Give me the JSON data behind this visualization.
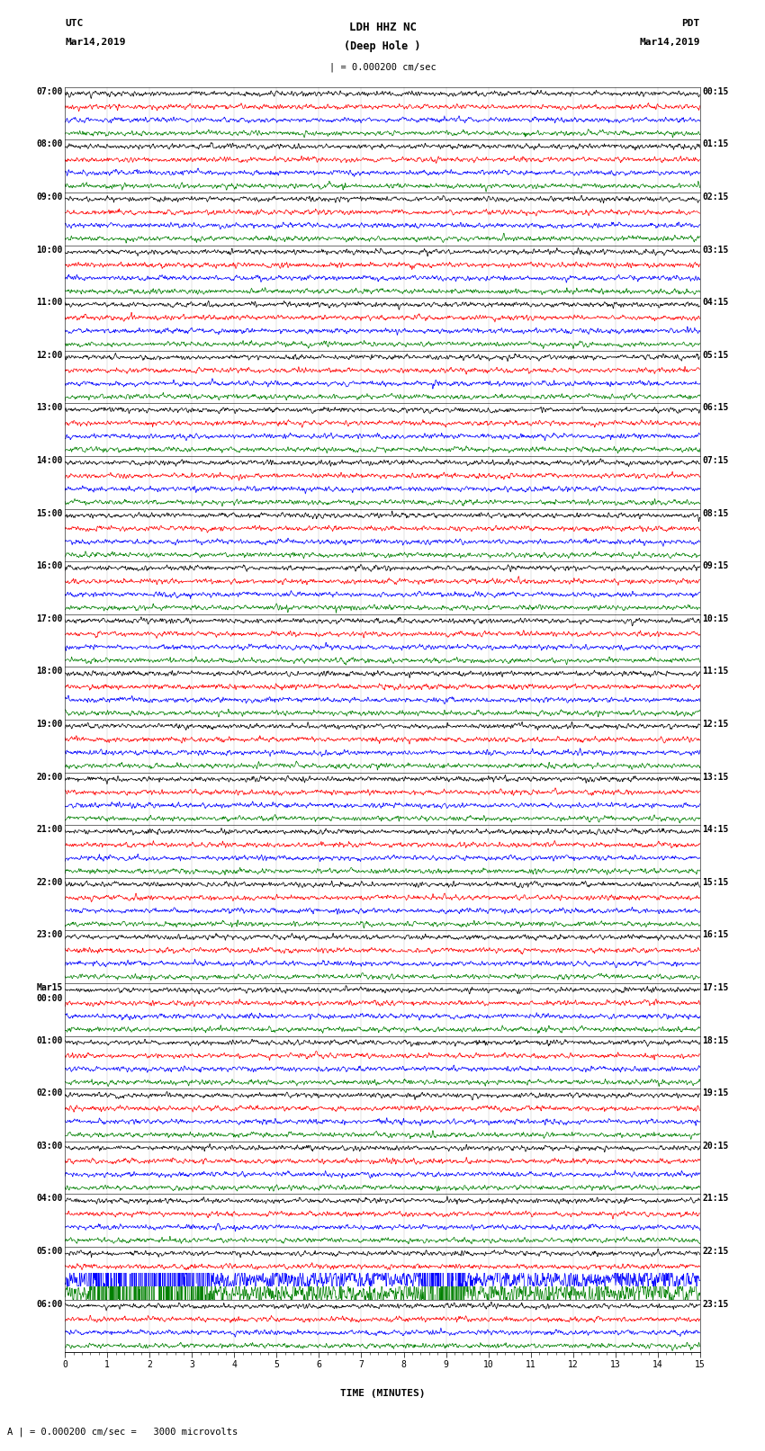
{
  "title_line1": "LDH HHZ NC",
  "title_line2": "(Deep Hole )",
  "title_scale": "| = 0.000200 cm/sec",
  "label_left_top": "UTC",
  "label_left_date": "Mar14,2019",
  "label_right_top": "PDT",
  "label_right_date": "Mar14,2019",
  "xlabel": "TIME (MINUTES)",
  "footer": "A | = 0.000200 cm/sec =   3000 microvolts",
  "utc_labels": [
    "07:00",
    "08:00",
    "09:00",
    "10:00",
    "11:00",
    "12:00",
    "13:00",
    "14:00",
    "15:00",
    "16:00",
    "17:00",
    "18:00",
    "19:00",
    "20:00",
    "21:00",
    "22:00",
    "23:00",
    "Mar15\n00:00",
    "01:00",
    "02:00",
    "03:00",
    "04:00",
    "05:00",
    "06:00"
  ],
  "pdt_labels": [
    "00:15",
    "01:15",
    "02:15",
    "03:15",
    "04:15",
    "05:15",
    "06:15",
    "07:15",
    "08:15",
    "09:15",
    "10:15",
    "11:15",
    "12:15",
    "13:15",
    "14:15",
    "15:15",
    "16:15",
    "17:15",
    "18:15",
    "19:15",
    "20:15",
    "21:15",
    "22:15",
    "23:15"
  ],
  "n_rows": 24,
  "traces_per_row": 4,
  "trace_colors": [
    "black",
    "red",
    "blue",
    "green"
  ],
  "fig_width": 8.5,
  "fig_height": 16.13,
  "dpi": 100,
  "bg_color": "white",
  "xmin": 0,
  "xmax": 15,
  "xticks": [
    0,
    1,
    2,
    3,
    4,
    5,
    6,
    7,
    8,
    9,
    10,
    11,
    12,
    13,
    14,
    15
  ],
  "noise_seed": 42,
  "n_samples": 1800,
  "base_amp": 0.42,
  "special_event_row": 22,
  "special_event_amp": 3.5
}
